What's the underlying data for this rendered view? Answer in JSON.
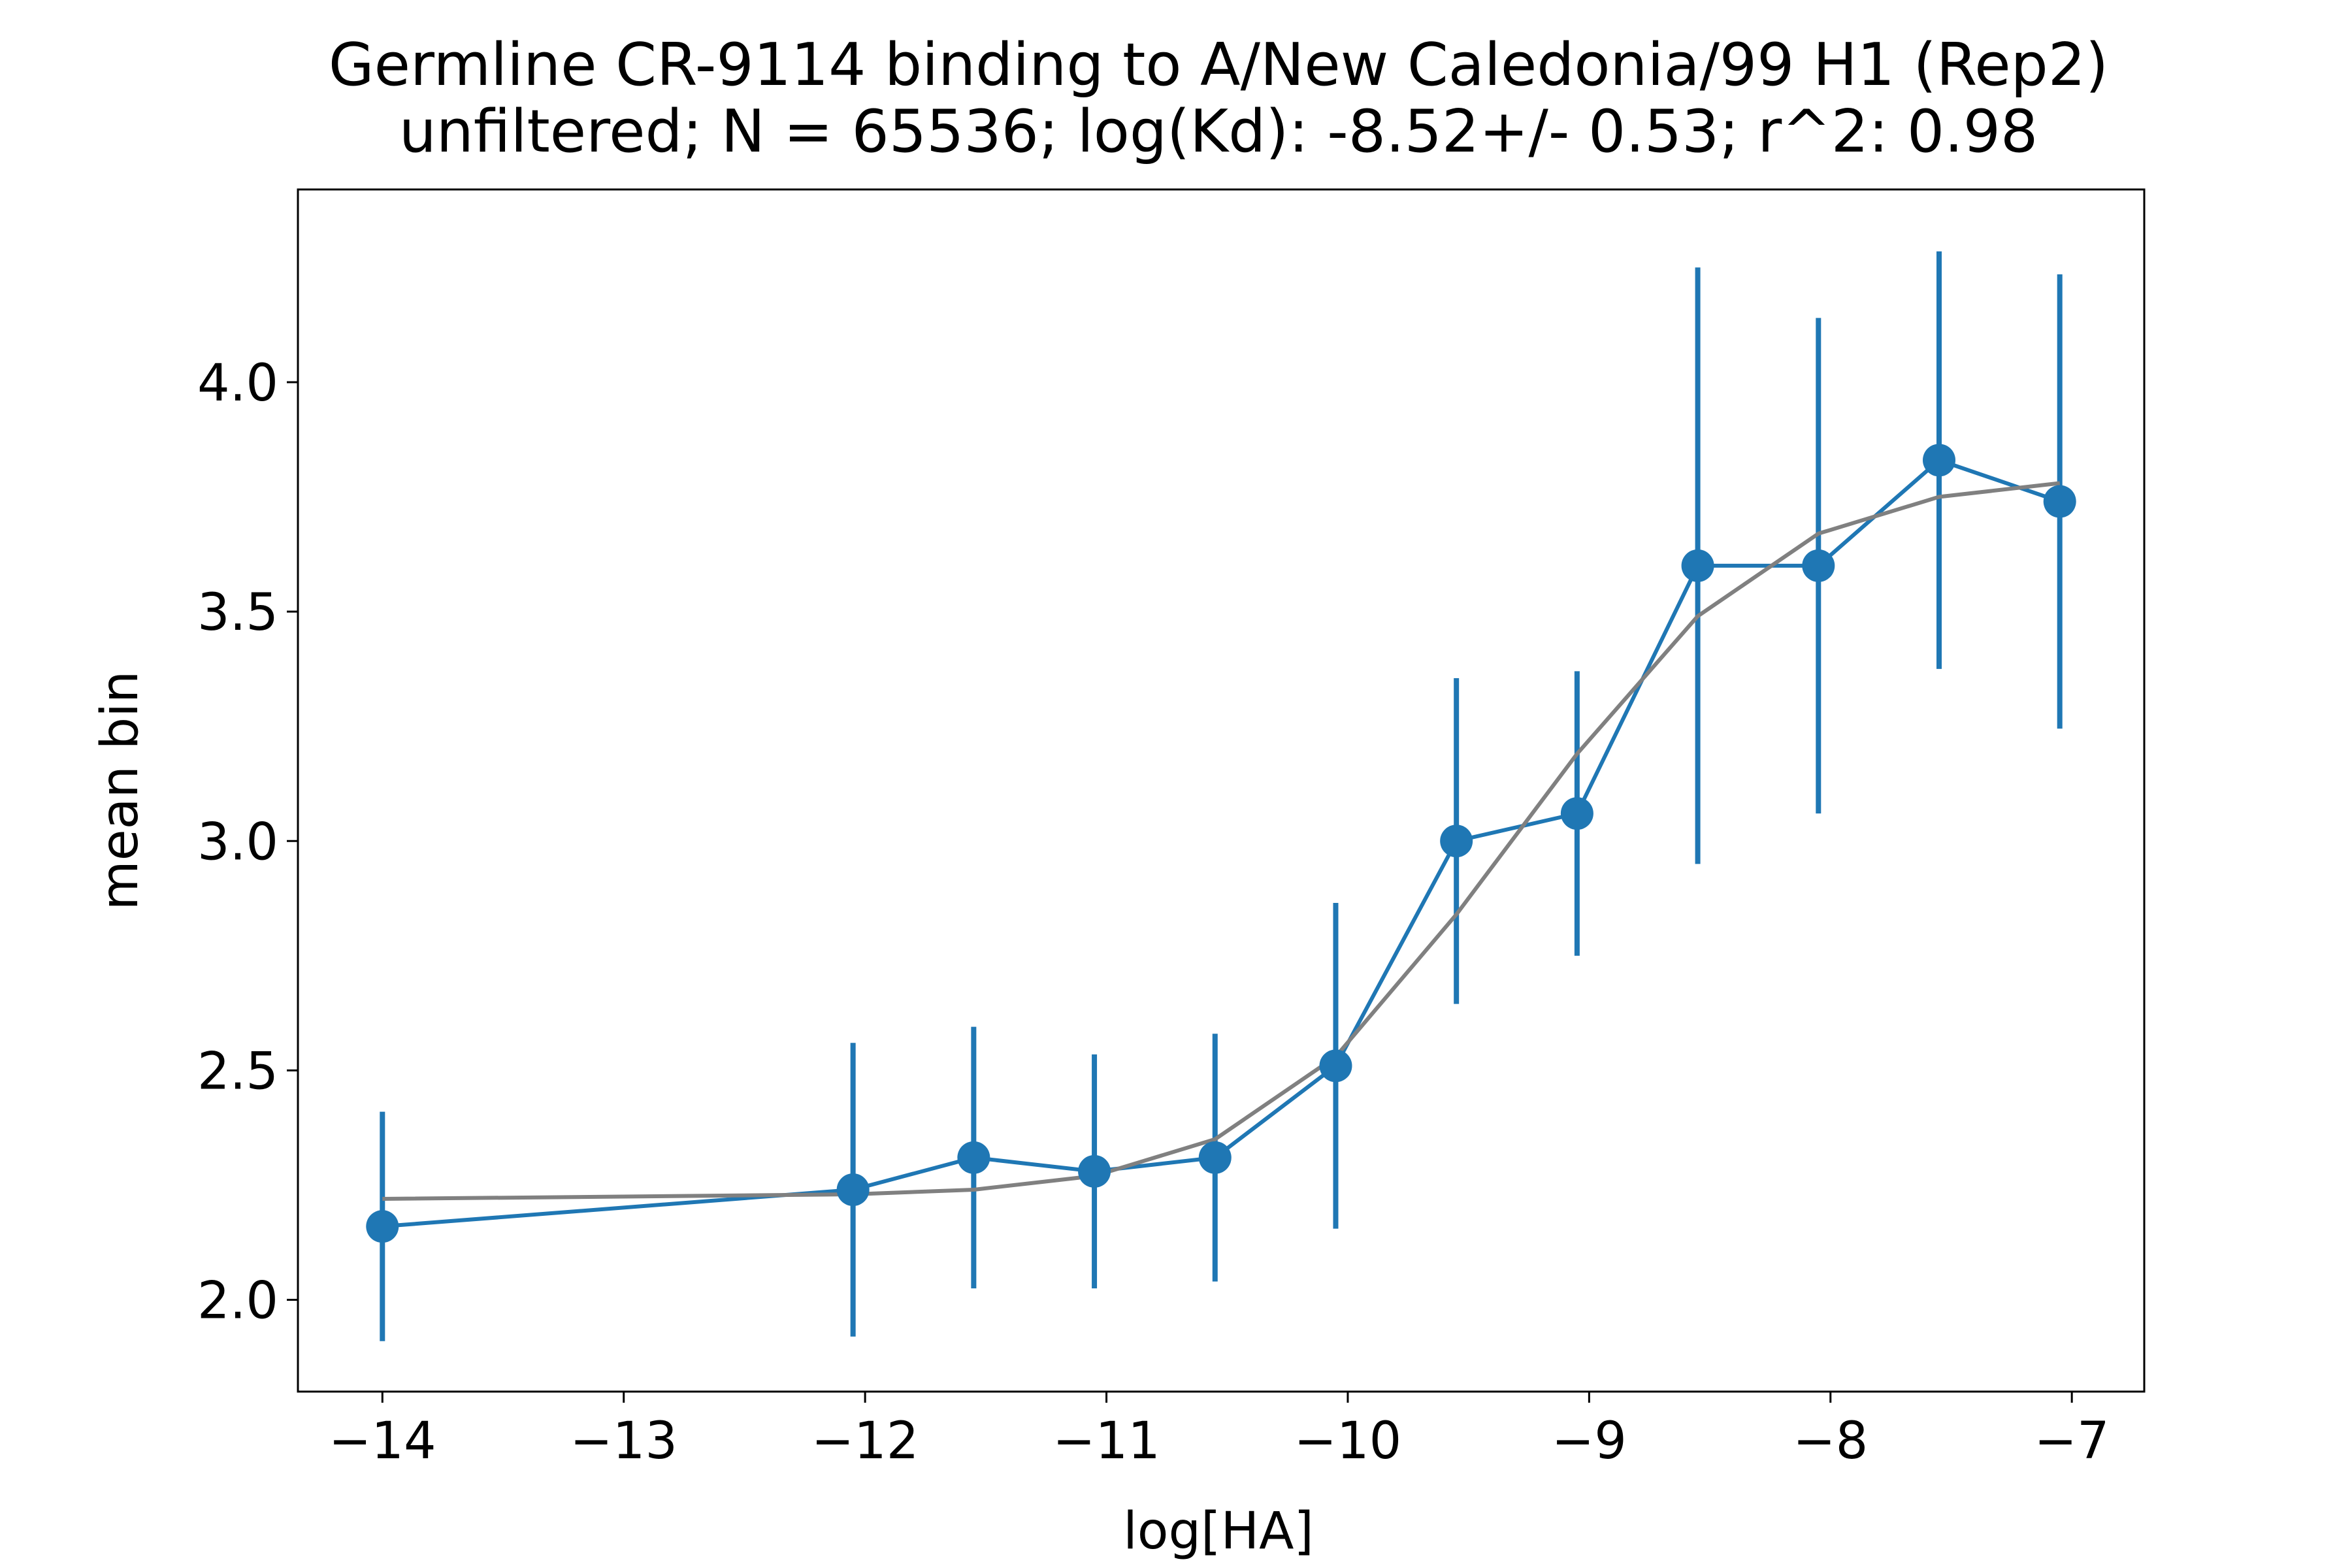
{
  "chart_data": {
    "type": "line",
    "title": "Germline CR-9114 binding to A/New Caledonia/99 H1 (Rep2)",
    "subtitle": "unfiltered; N = 65536; log(Kd): -8.52+/- 0.53; r^2: 0.98",
    "xlabel": "log[HA]",
    "ylabel": "mean bin",
    "xlim": [
      -14.35,
      -6.7
    ],
    "ylim": [
      1.8,
      4.42
    ],
    "x_ticks": [
      -14,
      -13,
      -12,
      -11,
      -10,
      -9,
      -8,
      -7
    ],
    "x_tick_labels": [
      "−14",
      "−13",
      "−12",
      "−11",
      "−10",
      "−9",
      "−8",
      "−7"
    ],
    "y_ticks": [
      2.0,
      2.5,
      3.0,
      3.5,
      4.0
    ],
    "y_tick_labels": [
      "2.0",
      "2.5",
      "3.0",
      "3.5",
      "4.0"
    ],
    "grid": false,
    "series": [
      {
        "color": "#1f77b4",
        "marker": "circle",
        "x": [
          -14,
          -12.05,
          -11.55,
          -11.05,
          -10.55,
          -10.05,
          -9.55,
          -9.05,
          -8.55,
          -8.05,
          -7.55,
          -7.05
        ],
        "y": [
          2.16,
          2.24,
          2.31,
          2.28,
          2.31,
          2.51,
          3.0,
          3.06,
          3.6,
          3.6,
          3.83,
          3.74
        ],
        "yerr": [
          0.25,
          0.32,
          0.285,
          0.255,
          0.27,
          0.355,
          0.355,
          0.31,
          0.65,
          0.54,
          0.455,
          0.495
        ]
      },
      {
        "color": "#808080",
        "marker": "none",
        "x": [
          -14,
          -12.05,
          -11.55,
          -11.05,
          -10.55,
          -10.05,
          -9.55,
          -9.05,
          -8.55,
          -8.05,
          -7.55,
          -7.05
        ],
        "y": [
          2.22,
          2.23,
          2.24,
          2.27,
          2.35,
          2.53,
          2.84,
          3.19,
          3.49,
          3.67,
          3.75,
          3.78
        ]
      }
    ]
  }
}
